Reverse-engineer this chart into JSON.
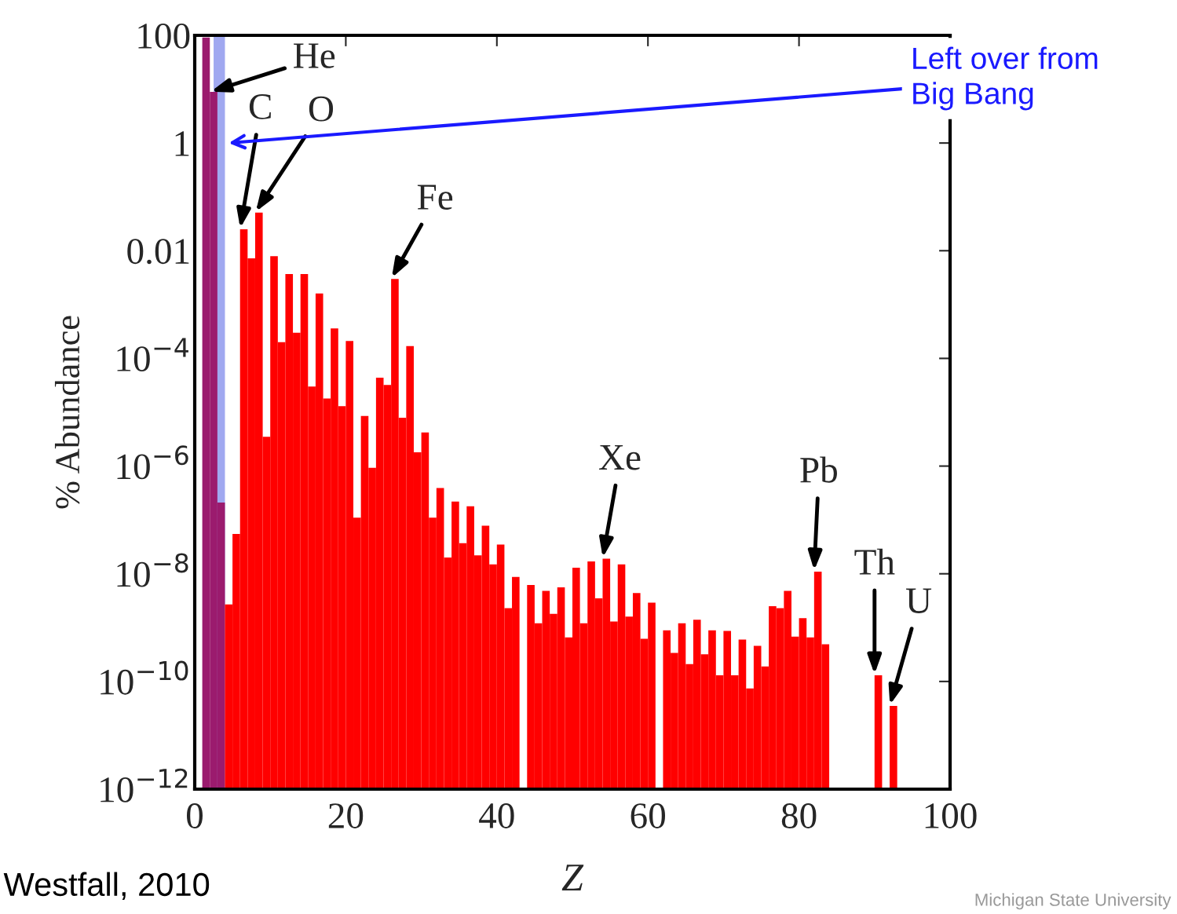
{
  "chart_data": {
    "type": "bar",
    "xlabel": "Z",
    "ylabel": "% Abundance",
    "log": "y",
    "grid": false,
    "legend": false,
    "xlim": [
      0,
      100
    ],
    "xticks": [
      0,
      20,
      40,
      60,
      80,
      100
    ],
    "ylim": [
      1e-12,
      100
    ],
    "yticks": [
      100,
      1,
      0.01,
      {
        "value": 0.0001,
        "label": "10$^{−4}$"
      },
      {
        "value": 1e-06,
        "label": "10$^{−6}$"
      },
      {
        "value": 1e-08,
        "label": "10$^{−8}$"
      },
      {
        "value": 1e-10,
        "label": "10$^{−10}$"
      },
      {
        "value": 1e-12,
        "label": "10$^{−12}$"
      }
    ],
    "bands": [
      {
        "axis": "x",
        "from": 2.5,
        "to": 4,
        "color": "#a0a8f0"
      }
    ],
    "series": [
      {
        "color": "#9b1b6e",
        "x": [
          1,
          2,
          3
        ],
        "values": [
          91,
          8.9,
          2.1e-07
        ]
      },
      {
        "color": "#ff0000",
        "x": [
          4,
          5,
          6,
          7,
          8,
          9,
          10,
          11,
          12,
          13,
          14,
          15,
          16,
          17,
          18,
          19,
          20,
          21,
          22,
          23,
          24,
          25,
          26,
          27,
          28,
          29,
          30,
          31,
          32,
          33,
          34,
          35,
          36,
          37,
          38,
          39,
          40,
          41,
          42,
          43,
          44,
          45,
          46,
          47,
          48,
          49,
          50,
          51,
          52,
          53,
          54,
          55,
          56,
          57,
          58,
          59,
          60,
          61,
          62,
          63,
          64,
          65,
          66,
          67,
          68,
          69,
          70,
          71,
          72,
          73,
          74,
          75,
          76,
          77,
          78,
          79,
          80,
          81,
          82,
          83,
          84,
          85,
          86,
          87,
          88,
          89,
          90,
          91,
          92
        ],
        "values": [
          2.7e-09,
          5.5e-08,
          0.025,
          0.0072,
          0.051,
          3.5e-06,
          0.0079,
          0.0002,
          0.0037,
          0.0003,
          0.0037,
          3e-05,
          0.0016,
          1.8e-05,
          0.00036,
          1.3e-05,
          0.00021,
          1.1e-07,
          8.5e-06,
          9.3e-07,
          4.4e-05,
          3.2e-05,
          0.003,
          7.9e-06,
          0.00017,
          1.8e-06,
          4.2e-06,
          1.1e-07,
          3.9e-07,
          2e-08,
          2.2e-07,
          3.7e-08,
          1.8e-07,
          2.2e-08,
          7.8e-08,
          1.5e-08,
          3.5e-08,
          2.3e-09,
          8.7e-09,
          null,
          6.2e-09,
          1.2e-09,
          4.8e-09,
          1.8e-09,
          5.6e-09,
          6.6e-10,
          1.3e-08,
          1.2e-09,
          1.7e-08,
          3.5e-09,
          1.9e-08,
          1.3e-09,
          1.5e-08,
          1.6e-09,
          4.4e-09,
          6.2e-10,
          2.9e-09,
          null,
          8.9e-10,
          3.4e-10,
          1.2e-09,
          2.1e-10,
          1.4e-09,
          3.2e-10,
          8.9e-10,
          1.3e-10,
          8.7e-10,
          1.3e-10,
          6e-10,
          7.4e-11,
          4.6e-10,
          1.9e-10,
          2.5e-09,
          2.3e-09,
          4.8e-09,
          6.8e-10,
          1.5e-09,
          6.6e-10,
          1.1e-08,
          4.9e-10,
          null,
          null,
          null,
          null,
          null,
          null,
          1.3e-10,
          null,
          3.5e-11
        ]
      }
    ],
    "annotations": [
      {
        "text": "He",
        "x": 2,
        "y": 8.9
      },
      {
        "text": "C",
        "x": 6,
        "y": 0.025
      },
      {
        "text": "O",
        "x": 8,
        "y": 0.051
      },
      {
        "text": "Fe",
        "x": 26,
        "y": 0.003
      },
      {
        "text": "Xe",
        "x": 54,
        "y": 1.9e-08
      },
      {
        "text": "Pb",
        "x": 82,
        "y": 1.1e-08
      },
      {
        "text": "Th",
        "x": 90,
        "y": 1.3e-10
      },
      {
        "text": "U",
        "x": 92,
        "y": 3.5e-11
      },
      {
        "text": "Left over from\nBig Bang",
        "x": 4.5,
        "y": 1
      },
      "Westfall, 2010",
      "Michigan State University"
    ]
  }
}
